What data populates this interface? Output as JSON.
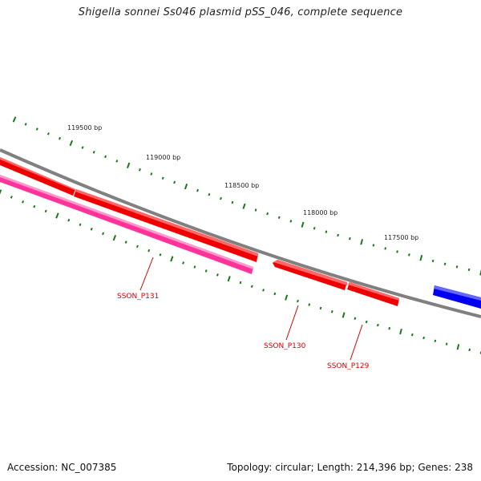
{
  "title": "Shigella sonnei Ss046 plasmid pSS_046, complete sequence",
  "footer": {
    "accession": "Accession: NC_007385",
    "summary": "Topology: circular; Length: 214,396 bp; Genes: 238"
  },
  "scale_labels": [
    "119500 bp",
    "119000 bp",
    "118500 bp",
    "118000 bp",
    "117500 bp"
  ],
  "gene_labels": [
    "SSON_P131",
    "SSON_P130",
    "SSON_P129"
  ],
  "colors": {
    "backbone": "#808080",
    "gene_red": "#ee0000",
    "gene_pink": "#ff3399",
    "gene_blue": "#0000ee",
    "tick": "#1a7a1a",
    "label": "#d40000"
  }
}
